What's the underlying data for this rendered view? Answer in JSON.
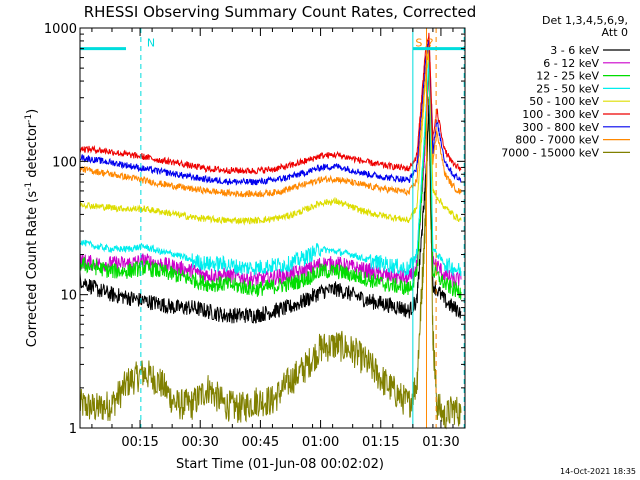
{
  "chart_data": {
    "type": "line",
    "title": "RHESSI Observing Summary Count Rates, Corrected",
    "xlabel": "Start Time (01-Jun-08 00:02:02)",
    "ylabel_main": "Corrected Count Rate (s",
    "ylabel_sup1": "-1",
    "ylabel_mid": " detector",
    "ylabel_sup2": "-1",
    "ylabel_end": ")",
    "y_scale": "log",
    "ylim": [
      1,
      1000
    ],
    "xlim_minutes": [
      2.03,
      98
    ],
    "y_ticks": [
      {
        "value": 1,
        "label": "1"
      },
      {
        "value": 10,
        "label": "10"
      },
      {
        "value": 100,
        "label": "100"
      },
      {
        "value": 1000,
        "label": "1000"
      }
    ],
    "x_ticks": [
      {
        "minutes": 17,
        "label": "00:15"
      },
      {
        "minutes": 32,
        "label": "00:30"
      },
      {
        "minutes": 47,
        "label": "00:45"
      },
      {
        "minutes": 62,
        "label": "01:00"
      },
      {
        "minutes": 77,
        "label": "01:15"
      },
      {
        "minutes": 92,
        "label": "01:30"
      }
    ],
    "legend_header": [
      "Det 1,3,4,5,6,9,",
      "Att 0"
    ],
    "legend_placement": "right",
    "series": [
      {
        "name": "3 - 6 keV",
        "color": "#000000",
        "points": [
          [
            2,
            13
          ],
          [
            6,
            11
          ],
          [
            10,
            10
          ],
          [
            14,
            9.5
          ],
          [
            18,
            9
          ],
          [
            22,
            8.5
          ],
          [
            26,
            8
          ],
          [
            30,
            8
          ],
          [
            34,
            7.5
          ],
          [
            38,
            7
          ],
          [
            42,
            7
          ],
          [
            46,
            7
          ],
          [
            50,
            7.5
          ],
          [
            54,
            8
          ],
          [
            58,
            9
          ],
          [
            62,
            10.5
          ],
          [
            66,
            11
          ],
          [
            70,
            10
          ],
          [
            74,
            9
          ],
          [
            78,
            8.5
          ],
          [
            82,
            8
          ],
          [
            84,
            7.5
          ],
          [
            86,
            9
          ],
          [
            88,
            60
          ],
          [
            89,
            250
          ],
          [
            90,
            12
          ],
          [
            93,
            9
          ],
          [
            95,
            8
          ],
          [
            97,
            7.5
          ]
        ]
      },
      {
        "name": "6 - 12 keV",
        "color": "#cc00cc",
        "points": [
          [
            2,
            18
          ],
          [
            6,
            17
          ],
          [
            10,
            17
          ],
          [
            14,
            17
          ],
          [
            18,
            18
          ],
          [
            22,
            17
          ],
          [
            26,
            16
          ],
          [
            30,
            15
          ],
          [
            34,
            14
          ],
          [
            38,
            14
          ],
          [
            42,
            13.5
          ],
          [
            46,
            13
          ],
          [
            50,
            13.5
          ],
          [
            54,
            14
          ],
          [
            58,
            15
          ],
          [
            62,
            17
          ],
          [
            66,
            17
          ],
          [
            70,
            16
          ],
          [
            74,
            15
          ],
          [
            78,
            14
          ],
          [
            82,
            13.5
          ],
          [
            84,
            13
          ],
          [
            86,
            16
          ],
          [
            88,
            120
          ],
          [
            89,
            500
          ],
          [
            90,
            18
          ],
          [
            93,
            14
          ],
          [
            95,
            13
          ],
          [
            97,
            13
          ]
        ]
      },
      {
        "name": "12 - 25 keV",
        "color": "#00dd00",
        "points": [
          [
            2,
            17
          ],
          [
            6,
            16
          ],
          [
            10,
            15
          ],
          [
            14,
            15
          ],
          [
            18,
            16
          ],
          [
            22,
            15
          ],
          [
            26,
            14
          ],
          [
            30,
            13
          ],
          [
            34,
            12
          ],
          [
            38,
            12
          ],
          [
            42,
            11.5
          ],
          [
            46,
            11
          ],
          [
            50,
            11.5
          ],
          [
            54,
            12
          ],
          [
            58,
            13
          ],
          [
            62,
            15
          ],
          [
            66,
            15
          ],
          [
            70,
            14
          ],
          [
            74,
            13
          ],
          [
            78,
            12
          ],
          [
            82,
            11.5
          ],
          [
            84,
            11
          ],
          [
            86,
            14
          ],
          [
            88,
            150
          ],
          [
            89,
            550
          ],
          [
            90,
            15
          ],
          [
            93,
            12
          ],
          [
            95,
            11
          ],
          [
            97,
            10.5
          ]
        ]
      },
      {
        "name": "25 - 50 keV",
        "color": "#00eeee",
        "points": [
          [
            2,
            25
          ],
          [
            6,
            23
          ],
          [
            10,
            22
          ],
          [
            14,
            22
          ],
          [
            18,
            23
          ],
          [
            22,
            21
          ],
          [
            26,
            20
          ],
          [
            30,
            18
          ],
          [
            34,
            17
          ],
          [
            38,
            17
          ],
          [
            42,
            16
          ],
          [
            46,
            16
          ],
          [
            50,
            16.5
          ],
          [
            54,
            17
          ],
          [
            58,
            19
          ],
          [
            62,
            22
          ],
          [
            66,
            21
          ],
          [
            70,
            20
          ],
          [
            74,
            18
          ],
          [
            78,
            17
          ],
          [
            82,
            16
          ],
          [
            84,
            15.5
          ],
          [
            86,
            20
          ],
          [
            88,
            180
          ],
          [
            89,
            600
          ],
          [
            90,
            22
          ],
          [
            93,
            17
          ],
          [
            95,
            16
          ],
          [
            97,
            15
          ]
        ]
      },
      {
        "name": "50 - 100 keV",
        "color": "#dddd00",
        "points": [
          [
            2,
            48
          ],
          [
            6,
            46
          ],
          [
            10,
            45
          ],
          [
            14,
            44
          ],
          [
            18,
            44
          ],
          [
            22,
            42
          ],
          [
            26,
            40
          ],
          [
            30,
            38
          ],
          [
            34,
            37
          ],
          [
            38,
            36
          ],
          [
            42,
            36
          ],
          [
            46,
            36
          ],
          [
            50,
            37
          ],
          [
            54,
            39
          ],
          [
            58,
            43
          ],
          [
            62,
            49
          ],
          [
            66,
            50
          ],
          [
            70,
            45
          ],
          [
            74,
            41
          ],
          [
            78,
            39
          ],
          [
            82,
            37
          ],
          [
            84,
            36
          ],
          [
            86,
            45
          ],
          [
            88,
            350
          ],
          [
            89,
            700
          ],
          [
            90,
            60
          ],
          [
            93,
            45
          ],
          [
            95,
            40
          ],
          [
            97,
            36
          ]
        ]
      },
      {
        "name": "100 - 300 keV",
        "color": "#ee0000",
        "points": [
          [
            2,
            125
          ],
          [
            6,
            122
          ],
          [
            10,
            118
          ],
          [
            14,
            112
          ],
          [
            18,
            108
          ],
          [
            22,
            102
          ],
          [
            26,
            98
          ],
          [
            30,
            92
          ],
          [
            34,
            88
          ],
          [
            38,
            86
          ],
          [
            42,
            85
          ],
          [
            46,
            85
          ],
          [
            50,
            87
          ],
          [
            54,
            92
          ],
          [
            58,
            100
          ],
          [
            62,
            110
          ],
          [
            66,
            112
          ],
          [
            70,
            105
          ],
          [
            74,
            98
          ],
          [
            78,
            93
          ],
          [
            82,
            90
          ],
          [
            84,
            88
          ],
          [
            86,
            110
          ],
          [
            88,
            600
          ],
          [
            89,
            900
          ],
          [
            90,
            150
          ],
          [
            91,
            240
          ],
          [
            93,
            120
          ],
          [
            95,
            95
          ],
          [
            97,
            88
          ]
        ]
      },
      {
        "name": "300 - 800 keV",
        "color": "#0000ee",
        "points": [
          [
            2,
            108
          ],
          [
            6,
            102
          ],
          [
            10,
            98
          ],
          [
            14,
            93
          ],
          [
            18,
            88
          ],
          [
            22,
            84
          ],
          [
            26,
            80
          ],
          [
            30,
            76
          ],
          [
            34,
            73
          ],
          [
            38,
            71
          ],
          [
            42,
            70
          ],
          [
            46,
            70
          ],
          [
            50,
            72
          ],
          [
            54,
            76
          ],
          [
            58,
            82
          ],
          [
            62,
            90
          ],
          [
            66,
            92
          ],
          [
            70,
            86
          ],
          [
            74,
            80
          ],
          [
            78,
            76
          ],
          [
            82,
            74
          ],
          [
            84,
            72
          ],
          [
            86,
            90
          ],
          [
            88,
            500
          ],
          [
            89,
            850
          ],
          [
            90,
            120
          ],
          [
            91,
            200
          ],
          [
            93,
            100
          ],
          [
            95,
            80
          ],
          [
            97,
            72
          ]
        ]
      },
      {
        "name": "800 - 7000 keV",
        "color": "#ff8800",
        "points": [
          [
            2,
            88
          ],
          [
            6,
            84
          ],
          [
            10,
            80
          ],
          [
            14,
            76
          ],
          [
            18,
            72
          ],
          [
            22,
            68
          ],
          [
            26,
            65
          ],
          [
            30,
            62
          ],
          [
            34,
            60
          ],
          [
            38,
            58
          ],
          [
            42,
            57
          ],
          [
            46,
            57
          ],
          [
            50,
            58
          ],
          [
            54,
            62
          ],
          [
            58,
            67
          ],
          [
            62,
            73
          ],
          [
            66,
            74
          ],
          [
            70,
            69
          ],
          [
            74,
            65
          ],
          [
            78,
            62
          ],
          [
            82,
            60
          ],
          [
            84,
            58
          ],
          [
            86,
            72
          ],
          [
            88,
            400
          ],
          [
            89,
            800
          ],
          [
            90,
            100
          ],
          [
            91,
            170
          ],
          [
            93,
            80
          ],
          [
            95,
            65
          ],
          [
            97,
            58
          ]
        ]
      },
      {
        "name": "7000 - 15000 keV",
        "color": "#808000",
        "points": [
          [
            2,
            1.5
          ],
          [
            6,
            1.4
          ],
          [
            10,
            1.5
          ],
          [
            14,
            2.2
          ],
          [
            18,
            2.6
          ],
          [
            22,
            2.2
          ],
          [
            26,
            1.5
          ],
          [
            30,
            1.5
          ],
          [
            34,
            2.0
          ],
          [
            38,
            1.5
          ],
          [
            42,
            1.4
          ],
          [
            46,
            1.6
          ],
          [
            50,
            1.6
          ],
          [
            54,
            2.2
          ],
          [
            58,
            2.8
          ],
          [
            62,
            4.0
          ],
          [
            66,
            4.2
          ],
          [
            70,
            3.8
          ],
          [
            74,
            3.0
          ],
          [
            78,
            2.2
          ],
          [
            82,
            1.7
          ],
          [
            84,
            1.5
          ],
          [
            86,
            2.2
          ],
          [
            88,
            30
          ],
          [
            89,
            300
          ],
          [
            90,
            5
          ],
          [
            91,
            1.5
          ],
          [
            93,
            1.2
          ],
          [
            95,
            1.4
          ],
          [
            97,
            1.3
          ]
        ]
      }
    ],
    "annotations": {
      "saa_bars": [
        {
          "start": 2.03,
          "end": 13.5,
          "label": "N",
          "value": 700
        },
        {
          "start": 85,
          "end": 98,
          "label": "",
          "value": 700
        }
      ],
      "vlines": [
        {
          "minutes": 2.03,
          "color": "#00dddd",
          "style": "solid"
        },
        {
          "minutes": 17.2,
          "color": "#00dddd",
          "style": "dashed"
        },
        {
          "minutes": 85,
          "color": "#00dddd",
          "style": "solid"
        },
        {
          "minutes": 97.8,
          "color": "#00dddd",
          "style": "dashed"
        },
        {
          "minutes": 88.4,
          "color": "#ff8800",
          "style": "solid"
        },
        {
          "minutes": 90.8,
          "color": "#ff8800",
          "style": "dashed"
        }
      ],
      "flag_labels": [
        {
          "minutes": 86.5,
          "label": "S",
          "color": "#ff8800"
        },
        {
          "minutes": 89.4,
          "label": "?",
          "color": "#ff8800"
        }
      ]
    },
    "grid": false
  },
  "footer": {
    "timestamp": "14-Oct-2021 18:35"
  }
}
